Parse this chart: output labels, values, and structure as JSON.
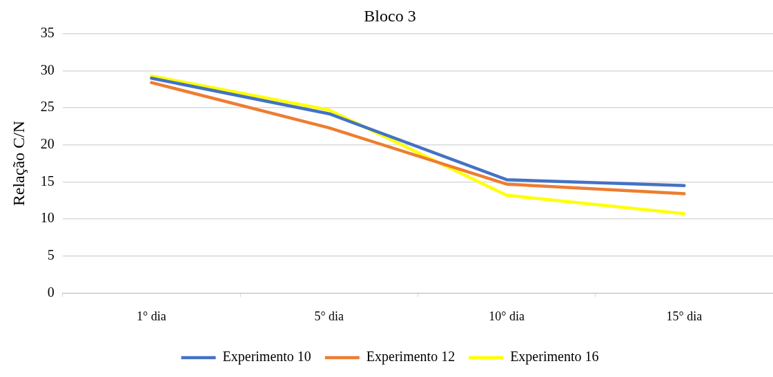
{
  "chart_data": {
    "type": "line",
    "title": "Bloco 3",
    "ylabel": "Relação C/N",
    "categories": [
      "1° dia",
      "5° dia",
      "10° dia",
      "15° dia"
    ],
    "series": [
      {
        "name": "Experimento 10",
        "color": "#4472c4",
        "values": [
          29.0,
          24.2,
          15.3,
          14.5
        ]
      },
      {
        "name": "Experimento 12",
        "color": "#ed7d31",
        "values": [
          28.4,
          22.3,
          14.7,
          13.4
        ]
      },
      {
        "name": "Experimento 16",
        "color": "#ffff00",
        "values": [
          29.3,
          24.7,
          13.2,
          10.7
        ]
      }
    ],
    "ylim": [
      0,
      35
    ],
    "yticks": [
      0,
      5,
      10,
      15,
      20,
      25,
      30,
      35
    ],
    "grid": "y",
    "legend": "bottom",
    "marker": "none",
    "line_style": "solid"
  }
}
